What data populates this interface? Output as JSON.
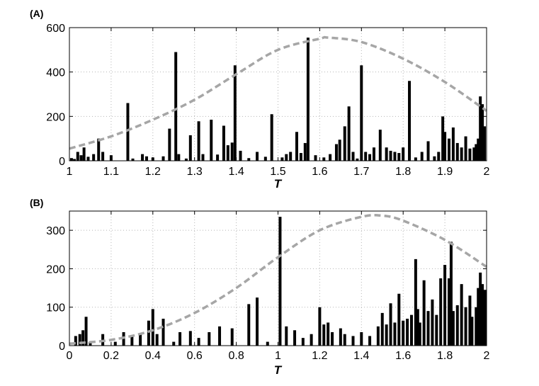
{
  "colors": {
    "bars": "#000000",
    "curve": "#a6a6a6",
    "grid": "#b5b5b5"
  },
  "chart_data": [
    {
      "type": "bar",
      "panel_label": "(A)",
      "title": "",
      "xlabel": "T",
      "ylabel": "",
      "xlim": [
        1,
        2
      ],
      "ylim": [
        0,
        600
      ],
      "xticks": [
        1,
        1.1,
        1.2,
        1.3,
        1.4,
        1.5,
        1.6,
        1.7,
        1.8,
        1.9,
        2
      ],
      "xtick_labels": [
        "1",
        "1.1",
        "1.2",
        "1.3",
        "1.4",
        "1.5",
        "1.6",
        "1.7",
        "1.8",
        "1.9",
        "2"
      ],
      "yticks": [
        0,
        200,
        400,
        600
      ],
      "ytick_labels": [
        "0",
        "200",
        "400",
        "600"
      ],
      "grid": true,
      "series": [
        {
          "kind": "bars",
          "x": [
            1.005,
            1.012,
            1.02,
            1.028,
            1.035,
            1.045,
            1.058,
            1.07,
            1.08,
            1.1,
            1.14,
            1.152,
            1.175,
            1.185,
            1.2,
            1.225,
            1.24,
            1.255,
            1.262,
            1.28,
            1.29,
            1.31,
            1.32,
            1.34,
            1.355,
            1.37,
            1.38,
            1.39,
            1.397,
            1.41,
            1.43,
            1.45,
            1.47,
            1.485,
            1.51,
            1.52,
            1.53,
            1.545,
            1.555,
            1.565,
            1.572,
            1.59,
            1.61,
            1.625,
            1.64,
            1.648,
            1.66,
            1.67,
            1.68,
            1.69,
            1.7,
            1.71,
            1.72,
            1.73,
            1.745,
            1.76,
            1.77,
            1.78,
            1.79,
            1.8,
            1.815,
            1.83,
            1.845,
            1.86,
            1.875,
            1.885,
            1.895,
            1.9,
            1.91,
            1.92,
            1.93,
            1.94,
            1.95,
            1.96,
            1.97,
            1.975,
            1.98,
            1.985,
            1.99,
            1.995
          ],
          "values": [
            12,
            8,
            40,
            25,
            60,
            18,
            30,
            100,
            40,
            25,
            260,
            10,
            30,
            20,
            15,
            20,
            145,
            490,
            30,
            10,
            115,
            178,
            30,
            185,
            28,
            158,
            70,
            82,
            430,
            45,
            12,
            40,
            18,
            210,
            15,
            30,
            40,
            130,
            35,
            80,
            555,
            25,
            15,
            30,
            75,
            95,
            155,
            245,
            40,
            10,
            430,
            40,
            30,
            60,
            140,
            60,
            45,
            40,
            35,
            60,
            360,
            15,
            40,
            88,
            20,
            40,
            200,
            130,
            100,
            150,
            80,
            60,
            110,
            55,
            60,
            75,
            100,
            290,
            255,
            155
          ]
        },
        {
          "kind": "dashed-curve",
          "x": [
            1,
            1.1,
            1.2,
            1.3,
            1.4,
            1.5,
            1.6,
            1.62,
            1.7,
            1.8,
            1.9,
            2
          ],
          "y": [
            55,
            110,
            185,
            275,
            390,
            500,
            550,
            555,
            535,
            460,
            355,
            225
          ]
        }
      ]
    },
    {
      "type": "bar",
      "panel_label": "(B)",
      "title": "",
      "xlabel": "T",
      "ylabel": "",
      "xlim": [
        0,
        2
      ],
      "ylim": [
        0,
        350
      ],
      "xticks": [
        0,
        0.2,
        0.4,
        0.6,
        0.8,
        1,
        1.2,
        1.4,
        1.6,
        1.8,
        2
      ],
      "xtick_labels": [
        "0",
        "0.2",
        "0.4",
        "0.6",
        "0.8",
        "1",
        "1.2",
        "1.4",
        "1.6",
        "1.8",
        "2"
      ],
      "yticks": [
        0,
        100,
        200,
        300
      ],
      "ytick_labels": [
        "0",
        "100",
        "200",
        "300"
      ],
      "grid": true,
      "series": [
        {
          "kind": "bars",
          "x": [
            0.03,
            0.05,
            0.065,
            0.08,
            0.1,
            0.16,
            0.22,
            0.26,
            0.3,
            0.34,
            0.38,
            0.4,
            0.42,
            0.45,
            0.5,
            0.53,
            0.58,
            0.62,
            0.67,
            0.72,
            0.78,
            0.86,
            0.9,
            0.95,
            1.01,
            1.04,
            1.08,
            1.12,
            1.16,
            1.2,
            1.22,
            1.24,
            1.26,
            1.3,
            1.32,
            1.36,
            1.4,
            1.44,
            1.48,
            1.5,
            1.52,
            1.54,
            1.56,
            1.58,
            1.6,
            1.62,
            1.64,
            1.66,
            1.67,
            1.68,
            1.7,
            1.72,
            1.74,
            1.76,
            1.78,
            1.8,
            1.82,
            1.83,
            1.84,
            1.86,
            1.88,
            1.9,
            1.92,
            1.93,
            1.95,
            1.96,
            1.97,
            1.98,
            1.99,
            2.0
          ],
          "values": [
            25,
            30,
            40,
            75,
            10,
            30,
            10,
            35,
            25,
            30,
            65,
            95,
            30,
            70,
            10,
            35,
            38,
            20,
            35,
            50,
            45,
            108,
            125,
            10,
            335,
            50,
            40,
            20,
            30,
            100,
            55,
            60,
            35,
            45,
            30,
            25,
            35,
            25,
            50,
            85,
            55,
            110,
            60,
            135,
            65,
            70,
            80,
            225,
            95,
            60,
            170,
            90,
            120,
            80,
            175,
            210,
            175,
            270,
            90,
            105,
            160,
            100,
            130,
            75,
            100,
            150,
            190,
            160,
            140,
            145
          ]
        },
        {
          "kind": "dashed-curve",
          "x": [
            0,
            0.2,
            0.4,
            0.6,
            0.8,
            1,
            1.2,
            1.4,
            1.5,
            1.6,
            1.8,
            2
          ],
          "y": [
            5,
            15,
            40,
            85,
            150,
            230,
            300,
            335,
            338,
            325,
            275,
            205
          ]
        }
      ]
    }
  ]
}
